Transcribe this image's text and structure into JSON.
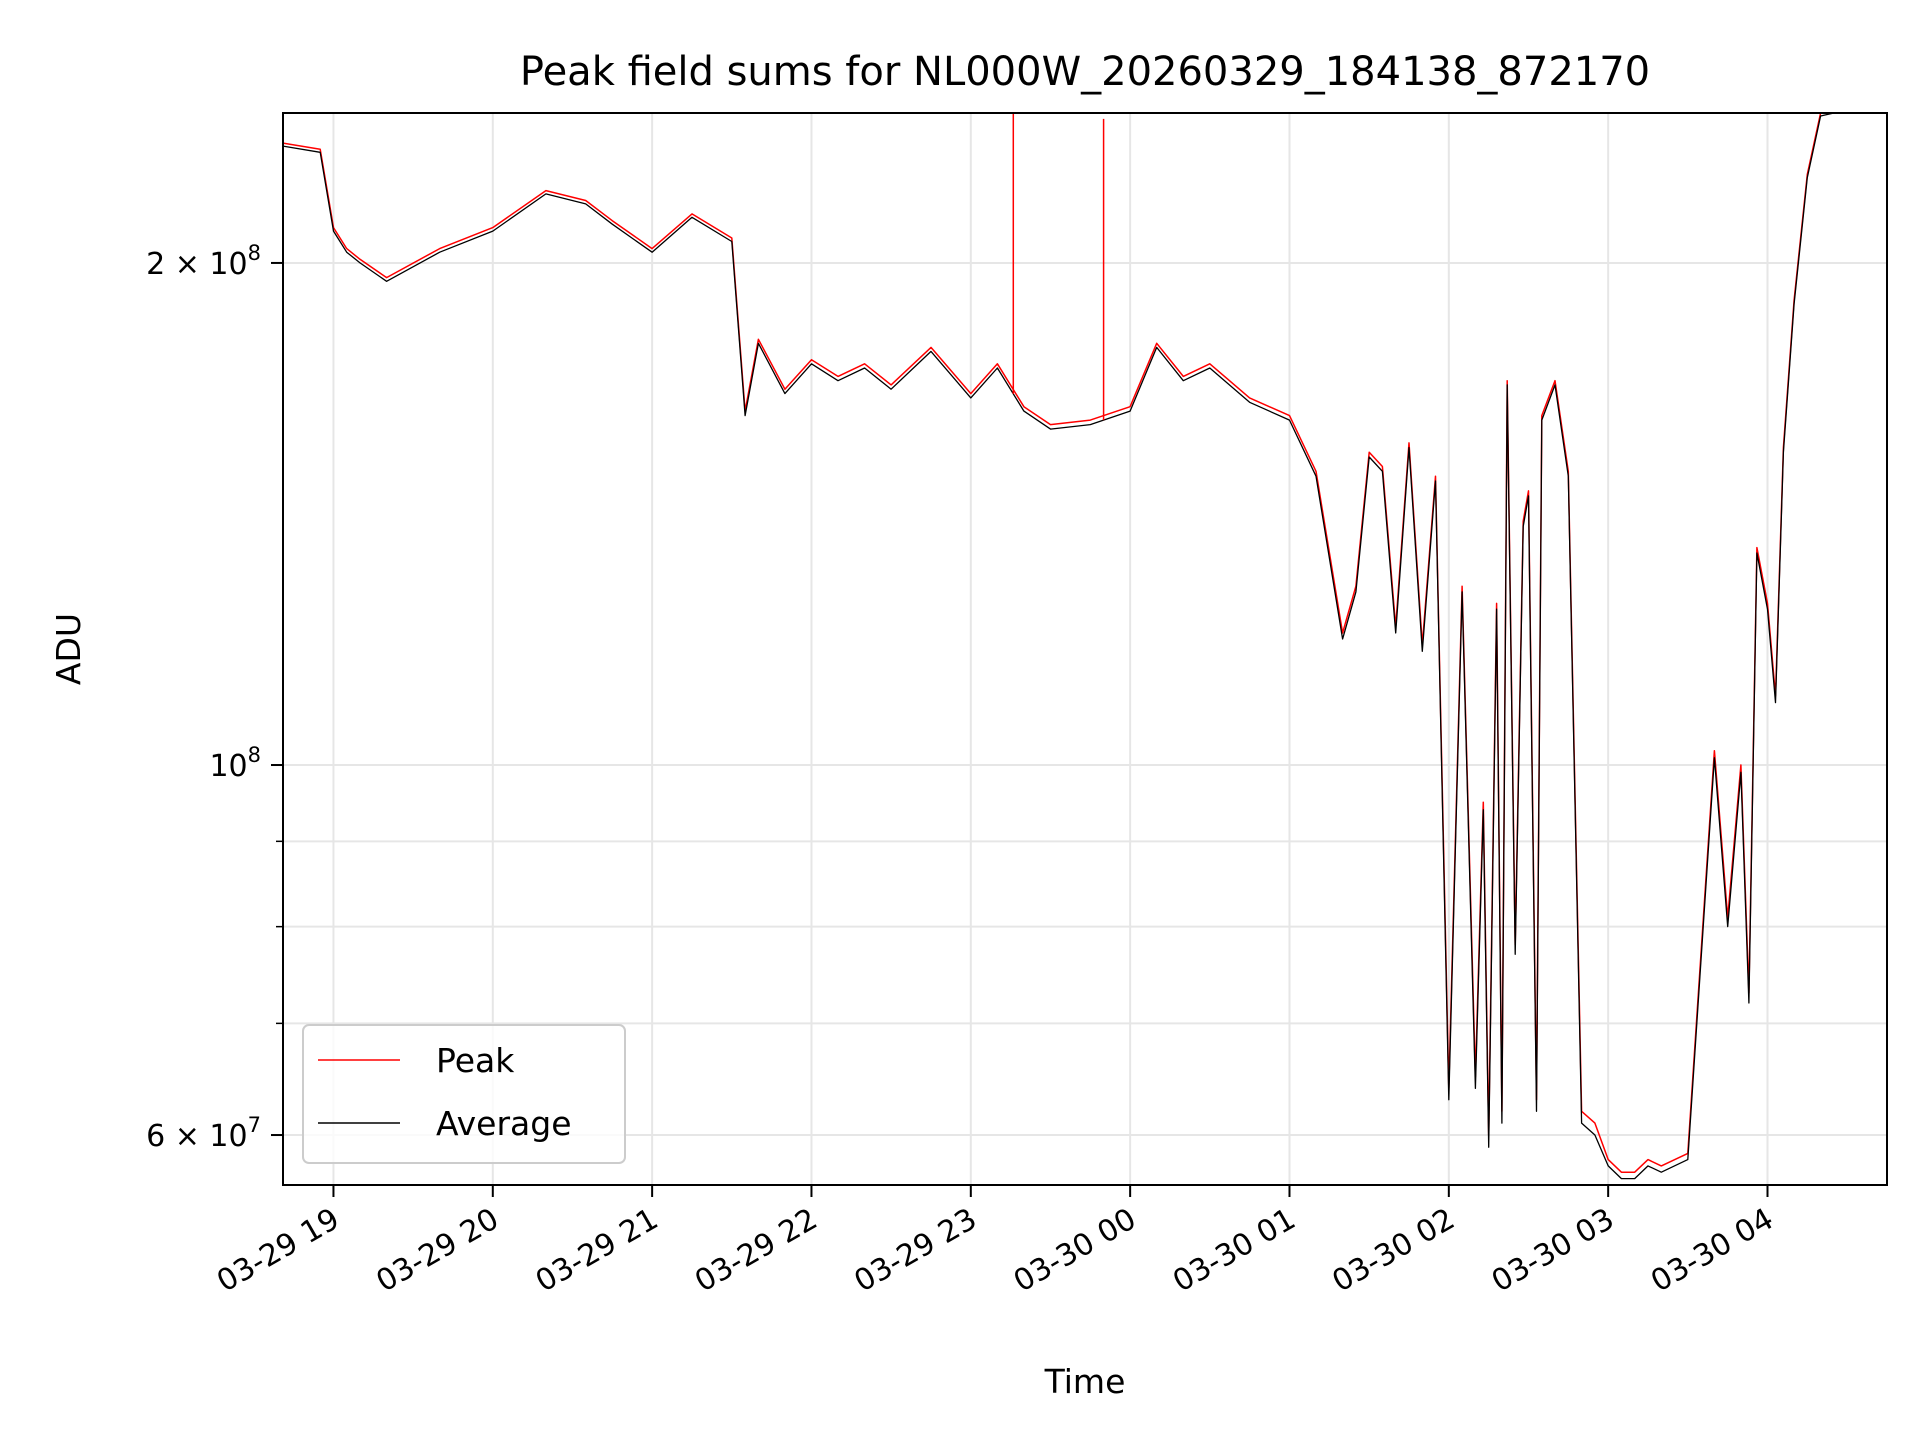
{
  "chart_data": {
    "type": "line",
    "title": "Peak field sums for NL000W_20260329_184138_872170",
    "xlabel": "Time",
    "ylabel": "ADU",
    "y_scale": "log",
    "ylim": [
      56000000,
      246000000
    ],
    "xlim": [
      "2026-03-29 18:41",
      "2026-03-30 04:45"
    ],
    "grid": true,
    "legend_position": "lower-left",
    "x_tick_labels": [
      "03-29 19",
      "03-29 20",
      "03-29 21",
      "03-29 22",
      "03-29 23",
      "03-30 00",
      "03-30 01",
      "03-30 02",
      "03-30 03",
      "03-30 04"
    ],
    "x_ticks": [
      "2026-03-29 19:00",
      "2026-03-29 20:00",
      "2026-03-29 21:00",
      "2026-03-29 22:00",
      "2026-03-29 23:00",
      "2026-03-30 00:00",
      "2026-03-30 01:00",
      "2026-03-30 02:00",
      "2026-03-30 03:00",
      "2026-03-30 04:00"
    ],
    "y_ticks": [
      {
        "value": 60000000,
        "label_base": "6",
        "label_exp": "7"
      },
      {
        "value": 100000000,
        "label_base": "",
        "label_exp": "8"
      },
      {
        "value": 200000000,
        "label_base": "2",
        "label_exp": "8"
      }
    ],
    "y_minor_ticks": [
      70000000,
      80000000,
      90000000
    ],
    "x": [
      "2026-03-29 18:41",
      "2026-03-29 18:55",
      "2026-03-29 19:00",
      "2026-03-29 19:05",
      "2026-03-29 19:10",
      "2026-03-29 19:20",
      "2026-03-29 19:40",
      "2026-03-29 20:00",
      "2026-03-29 20:20",
      "2026-03-29 20:35",
      "2026-03-29 20:45",
      "2026-03-29 21:00",
      "2026-03-29 21:15",
      "2026-03-29 21:30",
      "2026-03-29 21:35",
      "2026-03-29 21:40",
      "2026-03-29 21:50",
      "2026-03-29 22:00",
      "2026-03-29 22:10",
      "2026-03-29 22:20",
      "2026-03-29 22:30",
      "2026-03-29 22:45",
      "2026-03-29 23:00",
      "2026-03-29 23:10",
      "2026-03-29 23:20",
      "2026-03-29 23:30",
      "2026-03-29 23:45",
      "2026-03-30 00:00",
      "2026-03-30 00:10",
      "2026-03-30 00:20",
      "2026-03-30 00:30",
      "2026-03-30 00:45",
      "2026-03-30 01:00",
      "2026-03-30 01:10",
      "2026-03-30 01:20",
      "2026-03-30 01:25",
      "2026-03-30 01:30",
      "2026-03-30 01:35",
      "2026-03-30 01:40",
      "2026-03-30 01:45",
      "2026-03-30 01:50",
      "2026-03-30 01:55",
      "2026-03-30 02:00",
      "2026-03-30 02:05",
      "2026-03-30 02:10",
      "2026-03-30 02:13",
      "2026-03-30 02:15",
      "2026-03-30 02:18",
      "2026-03-30 02:20",
      "2026-03-30 02:22",
      "2026-03-30 02:25",
      "2026-03-30 02:28",
      "2026-03-30 02:30",
      "2026-03-30 02:33",
      "2026-03-30 02:35",
      "2026-03-30 02:40",
      "2026-03-30 02:45",
      "2026-03-30 02:50",
      "2026-03-30 02:55",
      "2026-03-30 03:00",
      "2026-03-30 03:05",
      "2026-03-30 03:10",
      "2026-03-30 03:15",
      "2026-03-30 03:20",
      "2026-03-30 03:30",
      "2026-03-30 03:40",
      "2026-03-30 03:45",
      "2026-03-30 03:50",
      "2026-03-30 03:53",
      "2026-03-30 03:56",
      "2026-03-30 04:00",
      "2026-03-30 04:03",
      "2026-03-30 04:06",
      "2026-03-30 04:10",
      "2026-03-30 04:15",
      "2026-03-30 04:20",
      "2026-03-30 04:25",
      "2026-03-30 04:30",
      "2026-03-30 04:36"
    ],
    "series": [
      {
        "name": "Peak",
        "color": "#ff0000",
        "values": [
          236000000,
          234000000,
          210000000,
          204000000,
          201000000,
          196000000,
          204000000,
          210000000,
          221000000,
          218000000,
          212000000,
          204000000,
          214000000,
          207000000,
          163000000,
          180000000,
          168000000,
          175000000,
          171000000,
          174000000,
          169000000,
          178000000,
          167000000,
          174000000,
          164000000,
          160000000,
          161000000,
          164000000,
          179000000,
          171000000,
          174000000,
          166000000,
          162000000,
          150000000,
          120000000,
          128000000,
          154000000,
          151000000,
          121000000,
          156000000,
          118000000,
          149000000,
          64000000,
          128000000,
          65000000,
          95000000,
          60000000,
          125000000,
          62000000,
          170000000,
          78000000,
          140000000,
          146000000,
          63000000,
          162000000,
          170000000,
          150000000,
          62000000,
          61000000,
          58000000,
          57000000,
          57000000,
          58000000,
          57500000,
          58500000,
          102000000,
          81000000,
          100000000,
          73000000,
          135000000,
          125000000,
          110000000,
          155000000,
          190000000,
          226000000,
          246000000,
          246000000,
          246000000,
          246000000
        ]
      },
      {
        "name": "Average",
        "color": "#000000",
        "values": [
          235000000,
          233000000,
          209000000,
          203000000,
          200000000,
          195000000,
          203000000,
          209000000,
          220000000,
          217000000,
          211000000,
          203000000,
          213000000,
          206000000,
          162000000,
          179000000,
          167000000,
          174000000,
          170000000,
          173000000,
          168000000,
          177000000,
          166000000,
          173000000,
          163000000,
          159000000,
          160000000,
          163000000,
          178000000,
          170000000,
          173000000,
          165000000,
          161000000,
          149000000,
          119000000,
          127000000,
          153000000,
          150000000,
          120000000,
          155000000,
          117000000,
          148000000,
          63000000,
          127000000,
          64000000,
          94000000,
          59000000,
          124000000,
          61000000,
          169000000,
          77000000,
          139000000,
          145000000,
          62000000,
          161000000,
          169000000,
          149000000,
          61000000,
          60000000,
          57500000,
          56500000,
          56500000,
          57500000,
          57000000,
          58000000,
          101000000,
          80000000,
          99000000,
          72000000,
          134000000,
          124000000,
          109000000,
          154000000,
          189000000,
          225000000,
          245000000,
          246000000,
          246000000,
          246000000
        ]
      }
    ],
    "spikes": {
      "series": "Peak",
      "x": [
        "2026-03-29 23:16",
        "2026-03-29 23:50"
      ],
      "values": [
        246000000,
        244000000
      ]
    }
  }
}
